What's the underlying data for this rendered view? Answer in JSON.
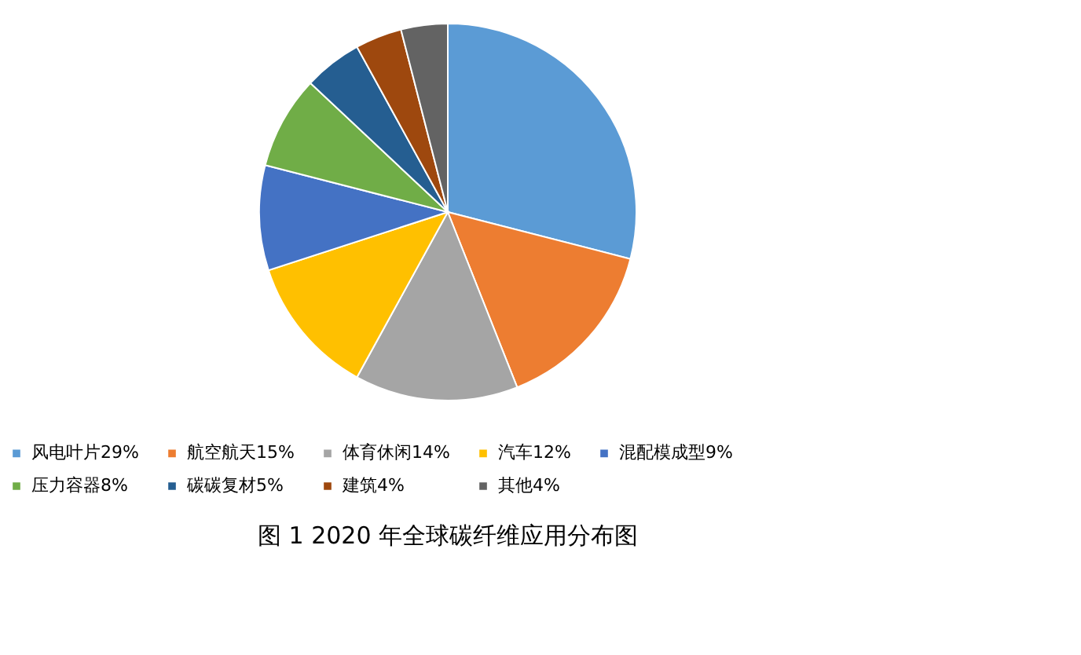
{
  "chart_data": {
    "type": "pie",
    "title": "图 1  2020 年全球碳纤维应用分布图",
    "categories": [
      "风电叶片29%",
      "航空航天15%",
      "体育休闲14%",
      "汽车12%",
      "混配模成型9%",
      "压力容器8%",
      "碳碳复材5%",
      "建筑4%",
      "其他4%"
    ],
    "values": [
      29,
      15,
      14,
      12,
      9,
      8,
      5,
      4,
      4
    ],
    "colors": [
      "#5b9bd5",
      "#ed7d31",
      "#a5a5a5",
      "#ffc000",
      "#4472c4",
      "#70ad47",
      "#255e91",
      "#9e480e",
      "#636363"
    ],
    "legend": "bottom"
  }
}
